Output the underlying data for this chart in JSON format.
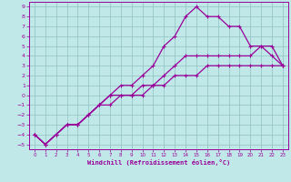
{
  "xlabel": "Windchill (Refroidissement éolien,°C)",
  "xlim": [
    -0.5,
    23.5
  ],
  "ylim": [
    -5.5,
    9.5
  ],
  "xticks": [
    0,
    1,
    2,
    3,
    4,
    5,
    6,
    7,
    8,
    9,
    10,
    11,
    12,
    13,
    14,
    15,
    16,
    17,
    18,
    19,
    20,
    21,
    22,
    23
  ],
  "yticks": [
    -5,
    -4,
    -3,
    -2,
    -1,
    0,
    1,
    2,
    3,
    4,
    5,
    6,
    7,
    8,
    9
  ],
  "background_color": "#c0e8e8",
  "grid_color": "#90c0c0",
  "line_color": "#990099",
  "line1_x": [
    0,
    1,
    2,
    3,
    4,
    5,
    6,
    7,
    8,
    9,
    10,
    11,
    12,
    13,
    14,
    15,
    16,
    17,
    18,
    19,
    20,
    21,
    22,
    23
  ],
  "line1_y": [
    -4,
    -5,
    -4,
    -3,
    -3,
    -2,
    -1,
    0,
    1,
    1,
    2,
    3,
    5,
    6,
    8,
    9,
    8,
    8,
    7,
    7,
    5,
    5,
    4,
    3
  ],
  "line2_x": [
    0,
    1,
    2,
    3,
    4,
    5,
    6,
    7,
    8,
    9,
    10,
    11,
    12,
    13,
    14,
    15,
    16,
    17,
    18,
    19,
    20,
    21,
    22,
    23
  ],
  "line2_y": [
    -4,
    -5,
    -4,
    -3,
    -3,
    -2,
    -1,
    0,
    0,
    0,
    1,
    1,
    2,
    3,
    4,
    4,
    4,
    4,
    4,
    4,
    4,
    5,
    5,
    3
  ],
  "line3_x": [
    0,
    1,
    2,
    3,
    4,
    5,
    6,
    7,
    8,
    9,
    10,
    11,
    12,
    13,
    14,
    15,
    16,
    17,
    18,
    19,
    20,
    21,
    22,
    23
  ],
  "line3_y": [
    -4,
    -5,
    -4,
    -3,
    -3,
    -2,
    -1,
    -1,
    0,
    0,
    0,
    1,
    1,
    2,
    2,
    2,
    3,
    3,
    3,
    3,
    3,
    3,
    3,
    3
  ]
}
